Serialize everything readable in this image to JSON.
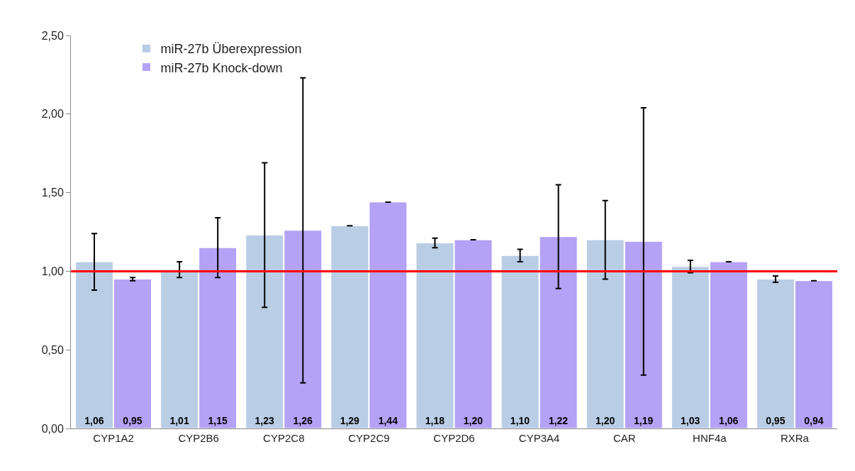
{
  "chart_data": {
    "type": "bar",
    "categories": [
      "CYP1A2",
      "CYP2B6",
      "CYP2C8",
      "CYP2C9",
      "CYP2D6",
      "CYP3A4",
      "CAR",
      "HNF4a",
      "RXRa"
    ],
    "series": [
      {
        "name": "miR-27b Überexpression",
        "color": "#b9cde5",
        "values": [
          1.06,
          1.01,
          1.23,
          1.29,
          1.18,
          1.1,
          1.2,
          1.03,
          0.95
        ],
        "errors": [
          0.18,
          0.05,
          0.46,
          null,
          0.03,
          0.04,
          0.25,
          0.04,
          0.02
        ],
        "value_labels": [
          "1,06",
          "1,01",
          "1,23",
          "1,29",
          "1,18",
          "1,10",
          "1,20",
          "1,03",
          "0,95"
        ]
      },
      {
        "name": "miR-27b Knock-down",
        "color": "#b3a2f5",
        "values": [
          0.95,
          1.15,
          1.26,
          1.44,
          1.2,
          1.22,
          1.19,
          1.06,
          0.94
        ],
        "errors": [
          0.01,
          0.19,
          0.97,
          null,
          null,
          0.33,
          0.85,
          null,
          null
        ],
        "value_labels": [
          "0,95",
          "1,15",
          "1,26",
          "1,44",
          "1,20",
          "1,22",
          "1,19",
          "1,06",
          "0,94"
        ]
      }
    ],
    "ylim": [
      0,
      2.5
    ],
    "yticks": [
      {
        "value": 0,
        "label": "0,00"
      },
      {
        "value": 0.5,
        "label": "0,50"
      },
      {
        "value": 1,
        "label": "1,00"
      },
      {
        "value": 1.5,
        "label": "1,50"
      },
      {
        "value": 2,
        "label": "2,00"
      },
      {
        "value": 2.5,
        "label": "2,50"
      }
    ],
    "ref_lines": [
      {
        "axis": "y",
        "value": 1,
        "color": "#ff0000",
        "line_style": "solid"
      }
    ],
    "grid": false,
    "legend": "top left"
  }
}
